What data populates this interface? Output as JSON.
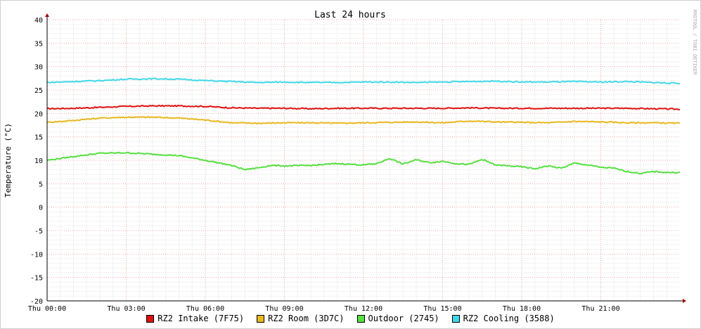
{
  "chart_data": {
    "type": "line",
    "title": "Last 24 hours",
    "ylabel": "Temperature (°C)",
    "watermark": "RRDTOOL / TOBI OETIKER",
    "ylim": [
      -20,
      40
    ],
    "yticks": [
      40,
      35,
      30,
      25,
      20,
      15,
      10,
      5,
      0,
      -5,
      -10,
      -15,
      -20
    ],
    "xlim": [
      0,
      24
    ],
    "xticks": [
      {
        "x": 0,
        "label": "Thu 00:00"
      },
      {
        "x": 3,
        "label": "Thu 03:00"
      },
      {
        "x": 6,
        "label": "Thu 06:00"
      },
      {
        "x": 9,
        "label": "Thu 09:00"
      },
      {
        "x": 12,
        "label": "Thu 12:00"
      },
      {
        "x": 15,
        "label": "Thu 15:00"
      },
      {
        "x": 18,
        "label": "Thu 18:00"
      },
      {
        "x": 21,
        "label": "Thu 21:00"
      }
    ],
    "grid": true,
    "legend": "bottom",
    "series": [
      {
        "name": "RZ2 Intake (7F75)",
        "color": "#e01010",
        "x": [
          0,
          1,
          2,
          3,
          4,
          5,
          6,
          7,
          8,
          9,
          10,
          11,
          12,
          13,
          14,
          15,
          16,
          17,
          18,
          19,
          20,
          21,
          22,
          23,
          24
        ],
        "values": [
          21.0,
          21.1,
          21.3,
          21.5,
          21.6,
          21.6,
          21.5,
          21.2,
          21.1,
          21.1,
          21.0,
          21.1,
          21.1,
          21.1,
          21.1,
          21.1,
          21.2,
          21.1,
          21.1,
          21.1,
          21.1,
          21.1,
          21.1,
          21.0,
          20.9
        ]
      },
      {
        "name": "RZ2 Room (3D7C)",
        "color": "#e8b820",
        "x": [
          0,
          1,
          2,
          3,
          4,
          5,
          6,
          7,
          8,
          9,
          10,
          11,
          12,
          13,
          14,
          15,
          16,
          17,
          18,
          19,
          20,
          21,
          22,
          23,
          24
        ],
        "values": [
          18.1,
          18.5,
          19.0,
          19.2,
          19.2,
          19.0,
          18.6,
          18.0,
          17.9,
          18.0,
          18.0,
          17.9,
          18.0,
          18.1,
          18.2,
          18.0,
          18.4,
          18.2,
          18.1,
          18.0,
          18.3,
          18.2,
          18.0,
          18.0,
          17.9
        ]
      },
      {
        "name": "Outdoor (2745)",
        "color": "#55e040",
        "x": [
          0,
          1,
          2,
          3,
          4,
          5,
          6,
          7,
          7.5,
          8,
          8.5,
          9,
          10,
          11,
          12,
          12.5,
          13,
          13.5,
          14,
          14.5,
          15,
          15.5,
          16,
          16.5,
          17,
          17.5,
          18,
          18.5,
          19,
          19.5,
          20,
          20.5,
          21,
          21.5,
          22,
          22.5,
          23,
          23.5,
          24
        ],
        "values": [
          10.0,
          10.8,
          11.5,
          11.6,
          11.3,
          11.0,
          10.0,
          8.9,
          8.0,
          8.4,
          8.9,
          8.8,
          8.9,
          9.3,
          9.0,
          9.3,
          10.4,
          9.2,
          10.1,
          9.5,
          9.8,
          9.3,
          9.1,
          10.2,
          9.0,
          8.8,
          8.6,
          8.2,
          8.8,
          8.3,
          9.4,
          9.0,
          8.5,
          8.3,
          7.6,
          7.2,
          7.6,
          7.4,
          7.4
        ]
      },
      {
        "name": "RZ2 Cooling (3588)",
        "color": "#40d8e8",
        "x": [
          0,
          1,
          2,
          3,
          4,
          5,
          6,
          7,
          8,
          9,
          10,
          11,
          12,
          13,
          14,
          15,
          16,
          17,
          18,
          19,
          20,
          21,
          22,
          23,
          24
        ],
        "values": [
          26.6,
          26.8,
          27.0,
          27.3,
          27.4,
          27.3,
          27.0,
          26.8,
          26.6,
          26.7,
          26.6,
          26.6,
          26.7,
          26.7,
          26.6,
          26.7,
          26.8,
          26.9,
          26.7,
          26.7,
          26.8,
          26.7,
          26.8,
          26.6,
          26.4
        ]
      }
    ]
  }
}
